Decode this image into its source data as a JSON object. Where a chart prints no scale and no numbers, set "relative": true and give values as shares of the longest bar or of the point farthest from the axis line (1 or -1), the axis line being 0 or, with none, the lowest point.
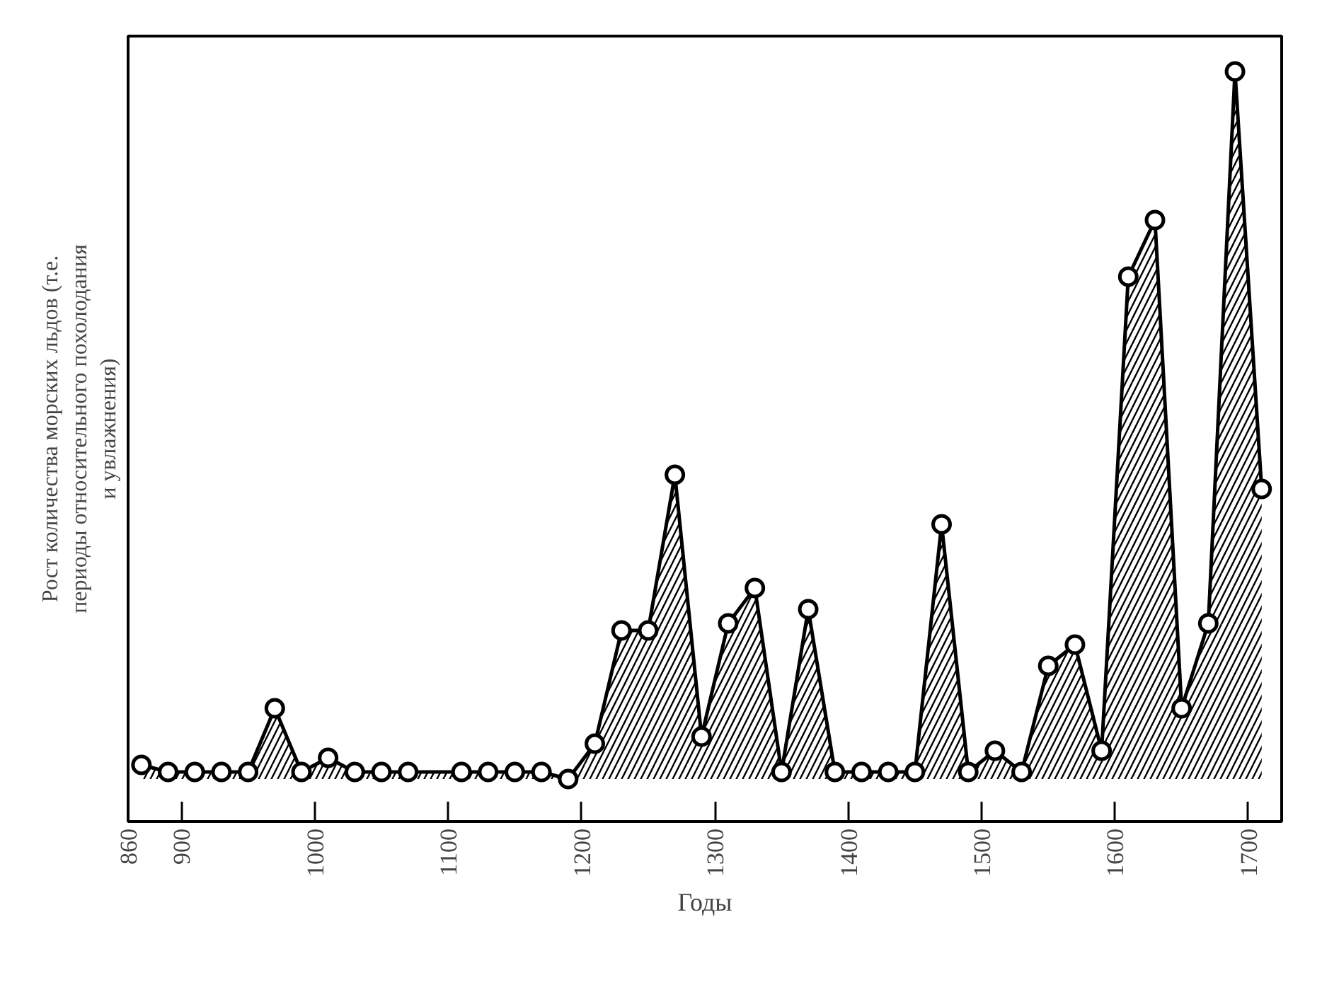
{
  "chart_data": {
    "type": "area",
    "relative": true,
    "xlabel": "Годы",
    "ylabel": "Рост количества морских льдов (т.е.\nпериоды относительного похолодания\nи увлажнения)",
    "x": [
      870,
      890,
      910,
      930,
      950,
      970,
      990,
      1010,
      1030,
      1050,
      1070,
      1110,
      1130,
      1150,
      1170,
      1190,
      1210,
      1230,
      1250,
      1270,
      1290,
      1310,
      1330,
      1350,
      1370,
      1390,
      1410,
      1430,
      1450,
      1470,
      1490,
      1510,
      1530,
      1550,
      1570,
      1590,
      1610,
      1630,
      1650,
      1670,
      1690,
      1710
    ],
    "series": [
      {
        "color": "#000000",
        "values": [
          0.02,
          0.01,
          0.01,
          0.01,
          0.01,
          0.1,
          0.01,
          0.03,
          0.01,
          0.01,
          0.01,
          0.01,
          0.01,
          0.01,
          0.01,
          0,
          0.05,
          0.21,
          0.21,
          0.43,
          0.06,
          0.22,
          0.27,
          0.01,
          0.24,
          0.01,
          0.01,
          0.01,
          0.01,
          0.36,
          0.01,
          0.04,
          0.01,
          0.16,
          0.19,
          0.04,
          0.71,
          0.79,
          0.1,
          0.22,
          1,
          0.41
        ]
      }
    ],
    "xlim": [
      860,
      1725
    ],
    "xticks": [
      860,
      900,
      1000,
      1100,
      1200,
      1300,
      1400,
      1500,
      1600,
      1700
    ],
    "marker": "circle",
    "grid": false,
    "tick_labels": "x"
  }
}
